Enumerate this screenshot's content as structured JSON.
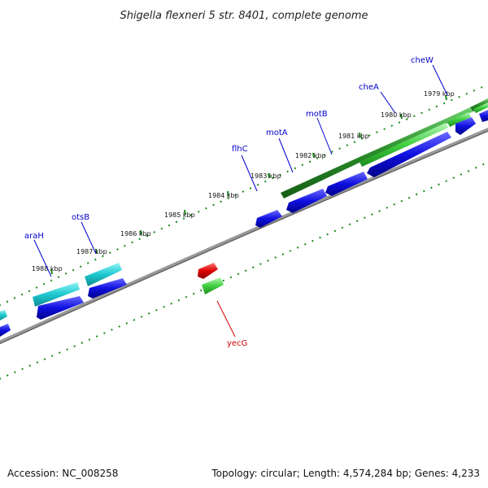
{
  "title": "Shigella flexneri 5 str. 8401, complete genome",
  "footer": {
    "accession": "Accession: NC_008258",
    "summary": "Topology: circular; Length: 4,574,284 bp; Genes: 4,233"
  },
  "colors": {
    "backbone": "#888888",
    "tick": "#1a8a1a",
    "cds_reverse": "#1010e0",
    "cds_forward": "#1ec8d0",
    "gene_forward": "#2a8a2a",
    "gene_light": "#3fcf3f",
    "gene_red": "#dd0000",
    "label_blue": "#0000cc",
    "label_red": "#cc0000"
  },
  "ticks": [
    "1979 kbp",
    "1980 kbp",
    "1981 kbp",
    "1982 kbp",
    "1983 kbp",
    "1984 kbp",
    "1985 kbp",
    "1986 kbp",
    "1987 kbp",
    "1988 kbp"
  ],
  "genes": [
    {
      "name": "cheW",
      "color": "label_blue"
    },
    {
      "name": "cheA",
      "color": "label_blue"
    },
    {
      "name": "motB",
      "color": "label_blue"
    },
    {
      "name": "motA",
      "color": "label_blue"
    },
    {
      "name": "flhC",
      "color": "label_blue"
    },
    {
      "name": "otsB",
      "color": "label_blue"
    },
    {
      "name": "araH",
      "color": "label_blue"
    },
    {
      "name": "yecG",
      "color": "label_red"
    }
  ]
}
